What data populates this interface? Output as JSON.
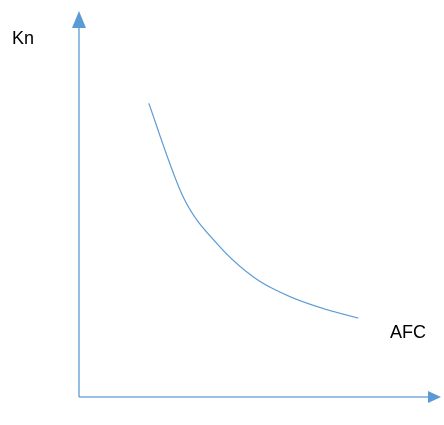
{
  "chart_data": {
    "type": "line",
    "title": "",
    "xlabel": "",
    "ylabel": "Kn",
    "grid": false,
    "legend": "none",
    "series": [
      {
        "name": "AFC",
        "x": [
          1.0,
          1.5,
          2.0,
          2.5,
          3.0,
          3.5,
          4.0
        ],
        "y": [
          9.3,
          6.3,
          4.8,
          3.8,
          3.2,
          2.8,
          2.5
        ]
      }
    ],
    "xlim": [
      0,
      5
    ],
    "ylim": [
      0,
      12
    ]
  },
  "labels": {
    "y_axis": "Kn",
    "curve": "AFC"
  },
  "colors": {
    "axis": "#5b9bd5",
    "curve": "#5b9bd5",
    "text": "#000000",
    "background": "#ffffff"
  }
}
